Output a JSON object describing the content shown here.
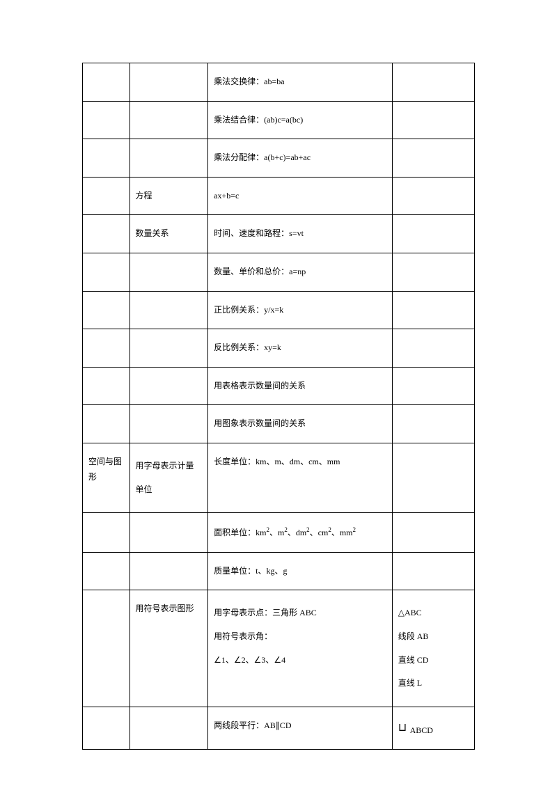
{
  "rows": [
    {
      "c1": "",
      "c2": "",
      "c3": "乘法交换律：ab=ba",
      "c4": ""
    },
    {
      "c1": "",
      "c2": "",
      "c3": "乘法结合律：(ab)c=a(bc)",
      "c4": ""
    },
    {
      "c1": "",
      "c2": "",
      "c3": "乘法分配律：a(b+c)=ab+ac",
      "c4": ""
    },
    {
      "c1": "",
      "c2": "方程",
      "c3": "ax+b=c",
      "c4": ""
    },
    {
      "c1": "",
      "c2": "数量关系",
      "c3": "时间、速度和路程：s=vt",
      "c4": ""
    },
    {
      "c1": "",
      "c2": "",
      "c3": "数量、单价和总价：a=np",
      "c4": ""
    },
    {
      "c1": "",
      "c2": "",
      "c3": "正比例关系：y/x=k",
      "c4": ""
    },
    {
      "c1": "",
      "c2": "",
      "c3": "反比例关系：xy=k",
      "c4": ""
    },
    {
      "c1": "",
      "c2": "",
      "c3": "用表格表示数量间的关系",
      "c4": ""
    },
    {
      "c1": "",
      "c2": "",
      "c3": "用图象表示数量间的关系",
      "c4": ""
    }
  ],
  "row11": {
    "c1": "空间与图形",
    "c2": "用字母表示计量单位",
    "c3": "长度单位：km、m、dm、cm、mm",
    "c4": ""
  },
  "row12": {
    "c1": "",
    "c2": "",
    "c3_prefix": "面积单位：km",
    "c3_unit2": "、m",
    "c3_unit3": "、dm",
    "c3_unit4": "、cm",
    "c3_unit5": "、mm",
    "sup": "2",
    "c4": ""
  },
  "row13": {
    "c1": "",
    "c2": "",
    "c3": "质量单位：t、kg、g",
    "c4": ""
  },
  "row14": {
    "c1": "",
    "c2": "用符号表示图形",
    "c3_l1": "用字母表示点：三角形 ABC",
    "c3_l2": "用符号表示角：",
    "c3_l3": "∠1、∠2、∠3、∠4",
    "c4_l1": "△ABC",
    "c4_l2": "线段 AB",
    "c4_l3": "直线 CD",
    "c4_l4": "直线 L"
  },
  "row15": {
    "c1": "",
    "c2": "",
    "c3": "两线段平行：AB∥CD",
    "c4_sym": "⊔",
    "c4_txt": " ABCD"
  }
}
